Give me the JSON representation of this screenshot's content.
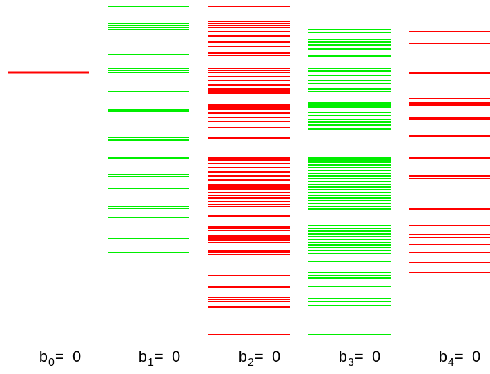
{
  "colors": {
    "red": "#ff0000",
    "green": "#00ee00"
  },
  "columns": [
    {
      "letter": "b",
      "index": "0",
      "eq": "=",
      "value": "0",
      "color": "red",
      "levels": [
        96
      ]
    },
    {
      "letter": "b",
      "index": "1",
      "eq": "=",
      "value": "0",
      "color": "green",
      "levels": [
        0,
        25,
        28,
        31,
        34,
        70,
        90,
        93,
        96,
        124,
        150,
        152,
        190,
        194,
        220,
        244,
        247,
        264,
        290,
        293,
        306,
        337,
        357
      ]
    },
    {
      "letter": "b",
      "index": "2",
      "eq": "=",
      "value": "0",
      "color": "red",
      "levels": [
        0,
        22,
        25,
        28,
        31,
        37,
        43,
        52,
        58,
        68,
        71,
        90,
        93,
        96,
        102,
        108,
        114,
        120,
        123,
        126,
        143,
        146,
        149,
        155,
        161,
        167,
        176,
        191,
        220,
        222,
        224,
        228,
        234,
        240,
        246,
        252,
        258,
        260,
        262,
        265,
        270,
        274,
        278,
        283,
        287,
        290,
        304,
        320,
        322,
        325,
        333,
        336,
        339,
        342,
        355,
        357,
        360,
        390,
        407,
        422,
        425,
        428,
        436,
        476
      ]
    },
    {
      "letter": "b",
      "index": "3",
      "eq": "=",
      "value": "0",
      "color": "green",
      "levels": [
        34,
        38,
        48,
        52,
        56,
        62,
        72,
        90,
        94,
        100,
        108,
        112,
        120,
        124,
        140,
        143,
        146,
        154,
        158,
        164,
        168,
        172,
        178,
        220,
        223,
        226,
        230,
        234,
        238,
        242,
        246,
        250,
        254,
        258,
        262,
        266,
        270,
        274,
        278,
        282,
        286,
        290,
        294,
        318,
        322,
        326,
        330,
        334,
        338,
        342,
        346,
        350,
        354,
        358,
        370,
        386,
        390,
        394,
        406,
        424,
        428,
        434,
        476
      ]
    },
    {
      "letter": "b",
      "index": "4",
      "eq": "=",
      "value": "0",
      "color": "red",
      "levels": [
        37,
        54,
        97,
        134,
        140,
        143,
        162,
        164,
        188,
        220,
        246,
        250,
        294,
        318,
        331,
        335,
        345,
        357,
        371,
        386
      ]
    }
  ]
}
